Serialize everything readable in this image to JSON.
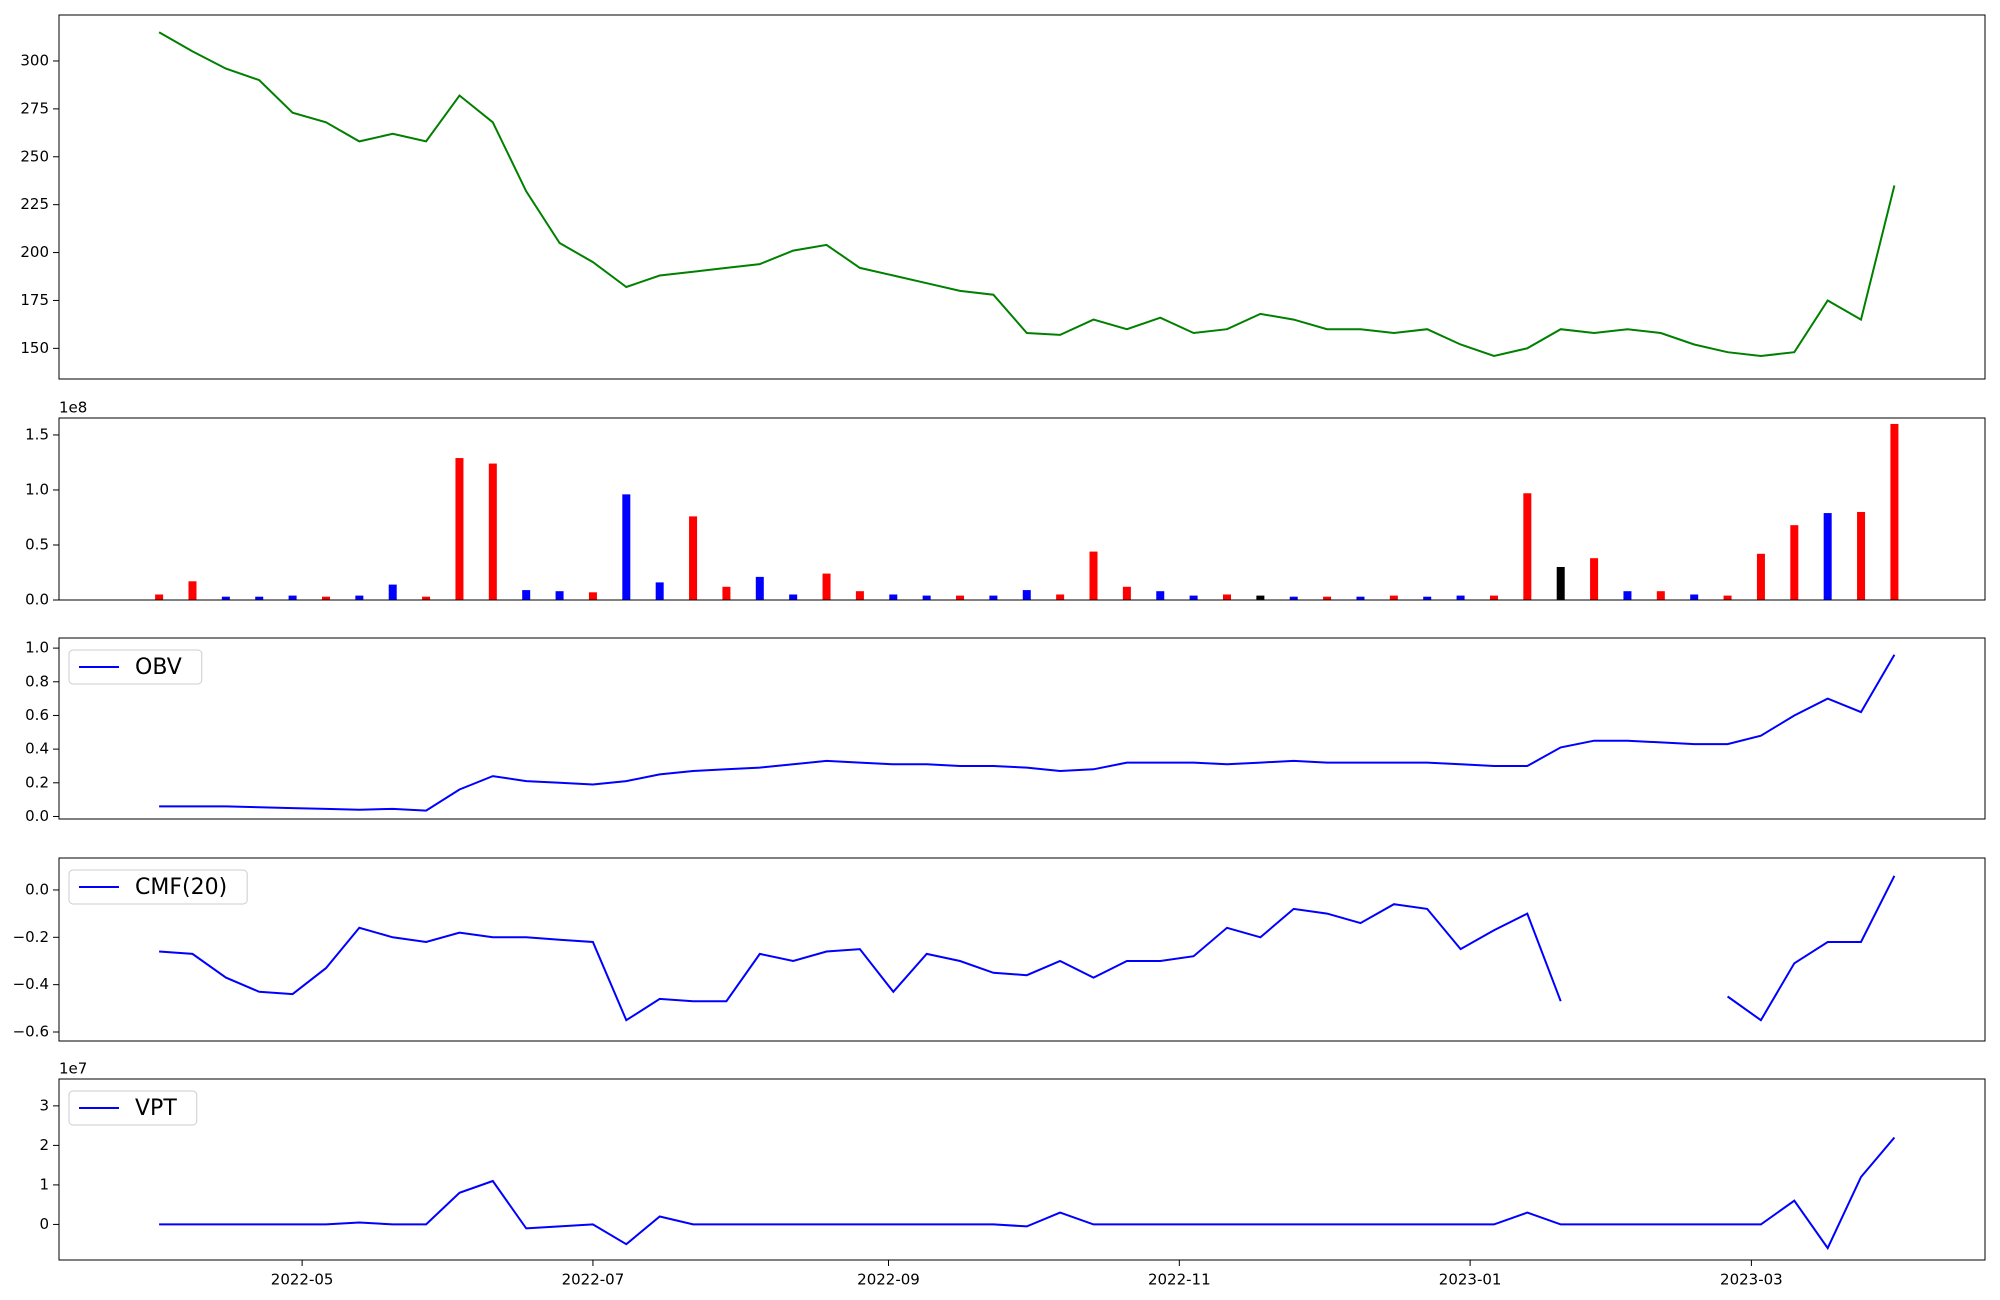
{
  "chart_data": [
    {
      "type": "line",
      "color": "#008000",
      "x": [
        "2022-04-01",
        "2022-04-08",
        "2022-04-15",
        "2022-04-22",
        "2022-04-29",
        "2022-05-06",
        "2022-05-13",
        "2022-05-20",
        "2022-05-27",
        "2022-06-03",
        "2022-06-10",
        "2022-06-17",
        "2022-06-24",
        "2022-07-01",
        "2022-07-08",
        "2022-07-15",
        "2022-07-22",
        "2022-07-29",
        "2022-08-05",
        "2022-08-12",
        "2022-08-19",
        "2022-08-26",
        "2022-09-02",
        "2022-09-09",
        "2022-09-16",
        "2022-09-23",
        "2022-09-30",
        "2022-10-07",
        "2022-10-14",
        "2022-10-21",
        "2022-10-28",
        "2022-11-04",
        "2022-11-11",
        "2022-11-18",
        "2022-11-25",
        "2022-12-02",
        "2022-12-09",
        "2022-12-16",
        "2022-12-23",
        "2022-12-30",
        "2023-01-06",
        "2023-01-13",
        "2023-01-20",
        "2023-01-27",
        "2023-02-03",
        "2023-02-10",
        "2023-02-17",
        "2023-02-24",
        "2023-03-03",
        "2023-03-10",
        "2023-03-17",
        "2023-03-24",
        "2023-03-31"
      ],
      "values": [
        315,
        305,
        296,
        290,
        273,
        268,
        258,
        262,
        258,
        282,
        268,
        232,
        205,
        195,
        182,
        188,
        190,
        192,
        194,
        201,
        204,
        192,
        188,
        184,
        180,
        178,
        158,
        157,
        165,
        160,
        166,
        158,
        160,
        168,
        165,
        160,
        160,
        158,
        160,
        152,
        146,
        150,
        160,
        158,
        160,
        158,
        152,
        148,
        146,
        148,
        175,
        165,
        235
      ],
      "xlim": [
        "2022-03-11",
        "2023-04-19"
      ],
      "ylim": [
        134,
        324
      ],
      "yticks": [
        150,
        175,
        200,
        225,
        250,
        275,
        300
      ]
    },
    {
      "type": "bar",
      "offset_label": "1e8",
      "x": [
        "2022-04-01",
        "2022-04-08",
        "2022-04-15",
        "2022-04-22",
        "2022-04-29",
        "2022-05-06",
        "2022-05-13",
        "2022-05-20",
        "2022-05-27",
        "2022-06-03",
        "2022-06-10",
        "2022-06-17",
        "2022-06-24",
        "2022-07-01",
        "2022-07-08",
        "2022-07-15",
        "2022-07-22",
        "2022-07-29",
        "2022-08-05",
        "2022-08-12",
        "2022-08-19",
        "2022-08-26",
        "2022-09-02",
        "2022-09-09",
        "2022-09-16",
        "2022-09-23",
        "2022-09-30",
        "2022-10-07",
        "2022-10-14",
        "2022-10-21",
        "2022-10-28",
        "2022-11-04",
        "2022-11-11",
        "2022-11-18",
        "2022-11-25",
        "2022-12-02",
        "2022-12-09",
        "2022-12-16",
        "2022-12-23",
        "2022-12-30",
        "2023-01-06",
        "2023-01-13",
        "2023-01-20",
        "2023-01-27",
        "2023-02-03",
        "2023-02-10",
        "2023-02-17",
        "2023-02-24",
        "2023-03-03",
        "2023-03-10",
        "2023-03-17",
        "2023-03-24",
        "2023-03-31"
      ],
      "values": [
        5000000,
        17000000,
        3000000,
        3000000,
        4000000,
        3000000,
        4000000,
        14000000,
        3000000,
        129000000,
        124000000,
        9000000,
        8000000,
        7000000,
        96000000,
        16000000,
        76000000,
        12000000,
        21000000,
        5000000,
        24000000,
        8000000,
        5000000,
        4000000,
        4000000,
        4000000,
        9000000,
        5000000,
        44000000,
        12000000,
        8000000,
        4000000,
        5000000,
        4000000,
        3000000,
        3000000,
        3000000,
        4000000,
        3000000,
        4000000,
        4000000,
        97000000,
        30000000,
        38000000,
        8000000,
        8000000,
        5000000,
        4000000,
        42000000,
        68000000,
        79000000,
        80000000,
        160000000
      ],
      "colors": [
        "#ff0000",
        "#ff0000",
        "#0000ff",
        "#0000ff",
        "#0000ff",
        "#ff0000",
        "#0000ff",
        "#0000ff",
        "#ff0000",
        "#ff0000",
        "#ff0000",
        "#0000ff",
        "#0000ff",
        "#ff0000",
        "#0000ff",
        "#0000ff",
        "#ff0000",
        "#ff0000",
        "#0000ff",
        "#0000ff",
        "#ff0000",
        "#ff0000",
        "#0000ff",
        "#0000ff",
        "#ff0000",
        "#0000ff",
        "#0000ff",
        "#ff0000",
        "#ff0000",
        "#ff0000",
        "#0000ff",
        "#0000ff",
        "#ff0000",
        "#000000",
        "#0000ff",
        "#ff0000",
        "#0000ff",
        "#ff0000",
        "#0000ff",
        "#0000ff",
        "#ff0000",
        "#ff0000",
        "#000000",
        "#ff0000",
        "#0000ff",
        "#ff0000",
        "#0000ff",
        "#ff0000",
        "#ff0000",
        "#ff0000",
        "#0000ff",
        "#ff0000",
        "#ff0000"
      ],
      "xlim": [
        "2022-03-11",
        "2023-04-19"
      ],
      "ylim": [
        0,
        165400000
      ],
      "yticks": [
        {
          "value": 0,
          "label": "0.0"
        },
        {
          "value": 50000000,
          "label": "0.5"
        },
        {
          "value": 100000000,
          "label": "1.0"
        },
        {
          "value": 150000000,
          "label": "1.5"
        }
      ]
    },
    {
      "type": "line",
      "legend": "upper left",
      "x": [
        "2022-04-01",
        "2022-04-08",
        "2022-04-15",
        "2022-04-22",
        "2022-04-29",
        "2022-05-06",
        "2022-05-13",
        "2022-05-20",
        "2022-05-27",
        "2022-06-03",
        "2022-06-10",
        "2022-06-17",
        "2022-06-24",
        "2022-07-01",
        "2022-07-08",
        "2022-07-15",
        "2022-07-22",
        "2022-07-29",
        "2022-08-05",
        "2022-08-12",
        "2022-08-19",
        "2022-08-26",
        "2022-09-02",
        "2022-09-09",
        "2022-09-16",
        "2022-09-23",
        "2022-09-30",
        "2022-10-07",
        "2022-10-14",
        "2022-10-21",
        "2022-10-28",
        "2022-11-04",
        "2022-11-11",
        "2022-11-18",
        "2022-11-25",
        "2022-12-02",
        "2022-12-09",
        "2022-12-16",
        "2022-12-23",
        "2022-12-30",
        "2023-01-06",
        "2023-01-13",
        "2023-01-20",
        "2023-01-27",
        "2023-02-03",
        "2023-02-10",
        "2023-02-17",
        "2023-02-24",
        "2023-03-03",
        "2023-03-10",
        "2023-03-17",
        "2023-03-24",
        "2023-03-31"
      ],
      "series": [
        {
          "name": "OBV",
          "color": "#0000ff",
          "values": [
            60000000,
            60000000,
            60000000,
            55000000,
            50000000,
            45000000,
            40000000,
            45000000,
            35000000,
            160000000,
            240000000,
            210000000,
            200000000,
            190000000,
            210000000,
            250000000,
            270000000,
            280000000,
            290000000,
            310000000,
            330000000,
            320000000,
            310000000,
            310000000,
            300000000,
            300000000,
            290000000,
            270000000,
            280000000,
            320000000,
            320000000,
            320000000,
            310000000,
            320000000,
            330000000,
            320000000,
            320000000,
            320000000,
            320000000,
            310000000,
            300000000,
            300000000,
            410000000,
            450000000,
            450000000,
            440000000,
            430000000,
            430000000,
            480000000,
            600000000,
            700000000,
            620000000,
            960000000
          ]
        }
      ],
      "xlim": [
        "2022-03-11",
        "2023-04-19"
      ],
      "ylim": [
        -15000000,
        1060000000
      ],
      "yticks": [
        {
          "value": 0,
          "label": "0.0"
        },
        {
          "value": 200000000,
          "label": "0.2"
        },
        {
          "value": 400000000,
          "label": "0.4"
        },
        {
          "value": 600000000,
          "label": "0.6"
        },
        {
          "value": 800000000,
          "label": "0.8"
        },
        {
          "value": 1000000000,
          "label": "1.0"
        }
      ]
    },
    {
      "type": "line",
      "legend": "upper left",
      "x": [
        "2022-04-01",
        "2022-04-08",
        "2022-04-15",
        "2022-04-22",
        "2022-04-29",
        "2022-05-06",
        "2022-05-13",
        "2022-05-20",
        "2022-05-27",
        "2022-06-03",
        "2022-06-10",
        "2022-06-17",
        "2022-06-24",
        "2022-07-01",
        "2022-07-08",
        "2022-07-15",
        "2022-07-22",
        "2022-07-29",
        "2022-08-05",
        "2022-08-12",
        "2022-08-19",
        "2022-08-26",
        "2022-09-02",
        "2022-09-09",
        "2022-09-16",
        "2022-09-23",
        "2022-09-30",
        "2022-10-07",
        "2022-10-14",
        "2022-10-21",
        "2022-10-28",
        "2022-11-04",
        "2022-11-11",
        "2022-11-18",
        "2022-11-25",
        "2022-12-02",
        "2022-12-09",
        "2022-12-16",
        "2022-12-23",
        "2022-12-30",
        "2023-01-06",
        "2023-01-13",
        "2023-01-20",
        "2023-01-27",
        "2023-02-03",
        "2023-02-10",
        "2023-02-17",
        "2023-02-24",
        "2023-03-03",
        "2023-03-10",
        "2023-03-17",
        "2023-03-24",
        "2023-03-31"
      ],
      "series": [
        {
          "name": "CMF(20)",
          "color": "#0000ff",
          "values": [
            -0.26,
            -0.27,
            -0.37,
            -0.43,
            -0.44,
            -0.33,
            -0.16,
            -0.2,
            -0.22,
            -0.18,
            -0.2,
            -0.2,
            -0.21,
            -0.22,
            -0.55,
            -0.46,
            -0.47,
            -0.47,
            -0.27,
            -0.3,
            -0.26,
            -0.25,
            -0.43,
            -0.27,
            -0.3,
            -0.35,
            -0.36,
            -0.3,
            -0.37,
            -0.3,
            -0.3,
            -0.28,
            -0.16,
            -0.2,
            -0.08,
            -0.1,
            -0.14,
            -0.06,
            -0.08,
            -0.25,
            -0.17,
            -0.1,
            -0.47,
            null,
            null,
            null,
            null,
            -0.45,
            -0.55,
            -0.31,
            -0.22,
            -0.22,
            0.06
          ]
        }
      ],
      "xlim": [
        "2022-03-11",
        "2023-04-19"
      ],
      "ylim": [
        -0.638,
        0.135
      ],
      "yticks": [
        {
          "value": -0.6,
          "label": "−0.6"
        },
        {
          "value": -0.4,
          "label": "−0.4"
        },
        {
          "value": -0.2,
          "label": "−0.2"
        },
        {
          "value": 0,
          "label": "0.0"
        }
      ]
    },
    {
      "type": "line",
      "legend": "upper left",
      "offset_label": "1e7",
      "x": [
        "2022-04-01",
        "2022-04-08",
        "2022-04-15",
        "2022-04-22",
        "2022-04-29",
        "2022-05-06",
        "2022-05-13",
        "2022-05-20",
        "2022-05-27",
        "2022-06-03",
        "2022-06-10",
        "2022-06-17",
        "2022-06-24",
        "2022-07-01",
        "2022-07-08",
        "2022-07-15",
        "2022-07-22",
        "2022-07-29",
        "2022-08-05",
        "2022-08-12",
        "2022-08-19",
        "2022-08-26",
        "2022-09-02",
        "2022-09-09",
        "2022-09-16",
        "2022-09-23",
        "2022-09-30",
        "2022-10-07",
        "2022-10-14",
        "2022-10-21",
        "2022-10-28",
        "2022-11-04",
        "2022-11-11",
        "2022-11-18",
        "2022-11-25",
        "2022-12-02",
        "2022-12-09",
        "2022-12-16",
        "2022-12-23",
        "2022-12-30",
        "2023-01-06",
        "2023-01-13",
        "2023-01-20",
        "2023-01-27",
        "2023-02-03",
        "2023-02-10",
        "2023-02-17",
        "2023-02-24",
        "2023-03-03",
        "2023-03-10",
        "2023-03-17",
        "2023-03-24",
        "2023-03-31"
      ],
      "series": [
        {
          "name": "VPT",
          "color": "#0000ff",
          "values": [
            0,
            0,
            0,
            0,
            0,
            0,
            500000,
            0,
            0,
            8000000,
            11000000,
            -1000000,
            -500000,
            0,
            -5000000,
            2000000,
            0,
            0,
            0,
            0,
            0,
            0,
            0,
            0,
            0,
            0,
            -500000,
            3000000,
            0,
            0,
            0,
            0,
            0,
            0,
            0,
            0,
            0,
            0,
            0,
            0,
            0,
            3000000,
            0,
            0,
            0,
            0,
            0,
            0,
            0,
            6000000,
            -6000000,
            12000000,
            22000000
          ]
        }
      ],
      "xlim": [
        "2022-03-11",
        "2023-04-19"
      ],
      "ylim": [
        -9000000,
        36800000
      ],
      "yticks": [
        0,
        {
          "value": 10000000,
          "label": "1"
        },
        {
          "value": 20000000,
          "label": "2"
        },
        {
          "value": 30000000,
          "label": "3"
        }
      ],
      "xticks": [
        {
          "value": "2022-05-01",
          "label": "2022-05"
        },
        {
          "value": "2022-07-01",
          "label": "2022-07"
        },
        {
          "value": "2022-09-01",
          "label": "2022-09"
        },
        {
          "value": "2022-11-01",
          "label": "2022-11"
        },
        {
          "value": "2023-01-01",
          "label": "2023-01"
        },
        {
          "value": "2023-03-01",
          "label": "2023-03"
        }
      ]
    }
  ]
}
